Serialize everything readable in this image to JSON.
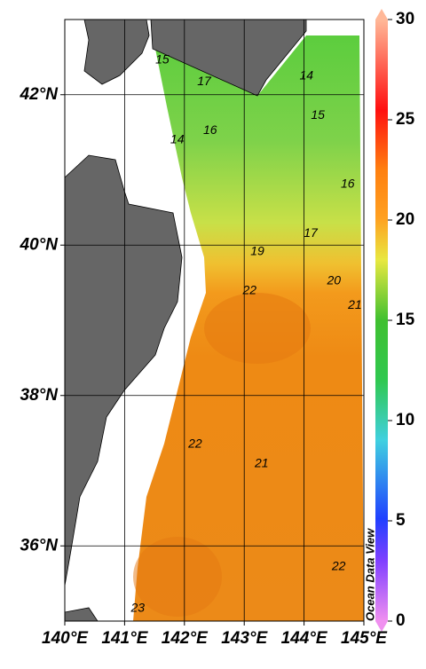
{
  "map": {
    "lonlim": [
      140,
      145
    ],
    "latlim": [
      35,
      43
    ],
    "lon_ticks": [
      {
        "value": 140,
        "label": "140°E"
      },
      {
        "value": 141,
        "label": "141°E"
      },
      {
        "value": 142,
        "label": "142°E"
      },
      {
        "value": 143,
        "label": "143°E"
      },
      {
        "value": 144,
        "label": "144°E"
      },
      {
        "value": 145,
        "label": "145°E"
      }
    ],
    "lat_ticks": [
      {
        "value": 36,
        "label": "36°N"
      },
      {
        "value": 38,
        "label": "38°N"
      },
      {
        "value": 40,
        "label": "40°N"
      },
      {
        "value": 42,
        "label": "42°N"
      }
    ],
    "contour_labels": [
      {
        "value": 15,
        "lon": 141.63,
        "lat": 42.46
      },
      {
        "value": 17,
        "lon": 142.33,
        "lat": 42.17
      },
      {
        "value": 14,
        "lon": 141.88,
        "lat": 41.4
      },
      {
        "value": 16,
        "lon": 142.43,
        "lat": 41.52
      },
      {
        "value": 14,
        "lon": 144.04,
        "lat": 42.25
      },
      {
        "value": 15,
        "lon": 144.23,
        "lat": 41.72
      },
      {
        "value": 16,
        "lon": 144.73,
        "lat": 40.81
      },
      {
        "value": 17,
        "lon": 144.11,
        "lat": 40.15
      },
      {
        "value": 19,
        "lon": 143.22,
        "lat": 39.91
      },
      {
        "value": 20,
        "lon": 144.5,
        "lat": 39.52
      },
      {
        "value": 21,
        "lon": 144.85,
        "lat": 39.2
      },
      {
        "value": 22,
        "lon": 143.09,
        "lat": 39.39
      },
      {
        "value": 22,
        "lon": 142.18,
        "lat": 37.35
      },
      {
        "value": 21,
        "lon": 143.29,
        "lat": 37.09
      },
      {
        "value": 22,
        "lon": 144.58,
        "lat": 35.72
      },
      {
        "value": 23,
        "lon": 141.22,
        "lat": 35.17
      }
    ],
    "credit": "Ocean Data View"
  },
  "colorbar": {
    "lim": [
      0,
      30
    ],
    "ticks": [
      0,
      5,
      10,
      15,
      20,
      25,
      30
    ]
  }
}
